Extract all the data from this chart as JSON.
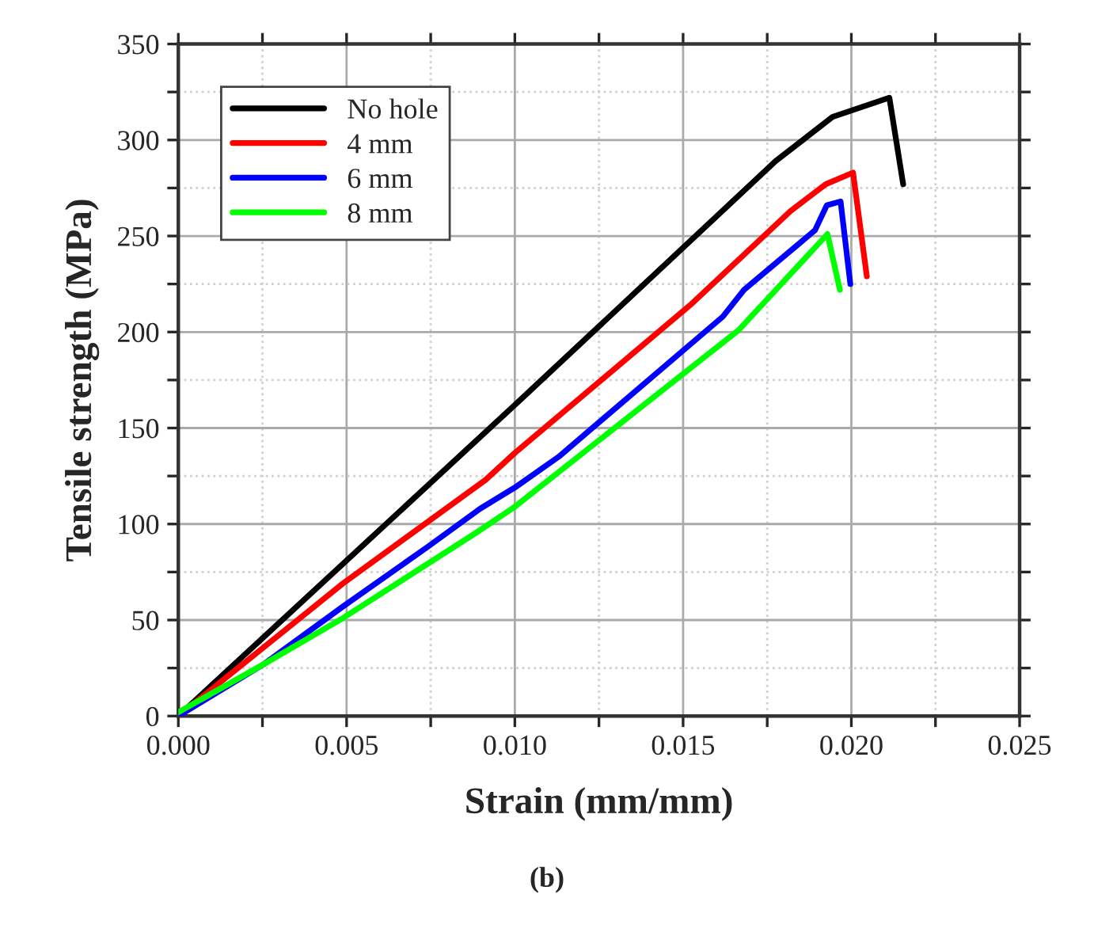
{
  "chart_data": {
    "type": "line",
    "xlabel": "Strain (mm/mm)",
    "ylabel": "Tensile strength (MPa)",
    "annotations": [
      "(b)"
    ],
    "xlim": [
      0,
      0.025
    ],
    "ylim": [
      0,
      350
    ],
    "xticks": [
      {
        "value": 0,
        "label": "0.000"
      },
      {
        "value": 0.0025,
        "label": null
      },
      {
        "value": 0.005,
        "label": "0.005"
      },
      {
        "value": 0.0075,
        "label": null
      },
      {
        "value": 0.01,
        "label": "0.010"
      },
      {
        "value": 0.0125,
        "label": null
      },
      {
        "value": 0.015,
        "label": "0.015"
      },
      {
        "value": 0.0175,
        "label": null
      },
      {
        "value": 0.02,
        "label": "0.020"
      },
      {
        "value": 0.0225,
        "label": null
      },
      {
        "value": 0.025,
        "label": "0.025"
      }
    ],
    "yticks": [
      0,
      {
        "value": 25,
        "label": null
      },
      50,
      {
        "value": 75,
        "label": null
      },
      100,
      {
        "value": 125,
        "label": null
      },
      150,
      {
        "value": 175,
        "label": null
      },
      200,
      {
        "value": 225,
        "label": null
      },
      250,
      {
        "value": 275,
        "label": null
      },
      300,
      {
        "value": 325,
        "label": null
      },
      350
    ],
    "grid": true,
    "legend": "top left",
    "marker": "none",
    "line_style": "solid",
    "series": [
      {
        "name": "No hole",
        "color": "#000000",
        "x": [
          0,
          0.01,
          0.01775,
          0.01944,
          0.02113,
          0.02154
        ],
        "values": [
          0,
          162,
          289,
          312,
          322,
          277
        ]
      },
      {
        "name": "4 mm",
        "color": "#ff0000",
        "x": [
          0,
          0.00489,
          0.00913,
          0.01,
          0.01521,
          0.01819,
          0.01924,
          0.02005,
          0.02046
        ],
        "values": [
          0,
          69,
          123,
          137,
          214,
          263,
          277,
          283,
          229
        ]
      },
      {
        "name": "6 mm",
        "color": "#0000ff",
        "x": [
          0,
          0.00254,
          0.00489,
          0.0074,
          0.00897,
          0.01,
          0.0113,
          0.01618,
          0.01681,
          0.01892,
          0.01927,
          0.01968,
          0.01997
        ],
        "values": [
          0,
          27,
          57,
          88,
          108,
          119,
          135,
          208,
          222,
          253,
          266,
          268,
          225
        ]
      },
      {
        "name": "8 mm",
        "color": "#00ff00",
        "x": [
          0,
          0.00254,
          0.00489,
          0.00881,
          0.01,
          0.01665,
          0.01929,
          0.01966
        ],
        "values": [
          2,
          27,
          51,
          95,
          109,
          201,
          251,
          222
        ]
      }
    ]
  }
}
